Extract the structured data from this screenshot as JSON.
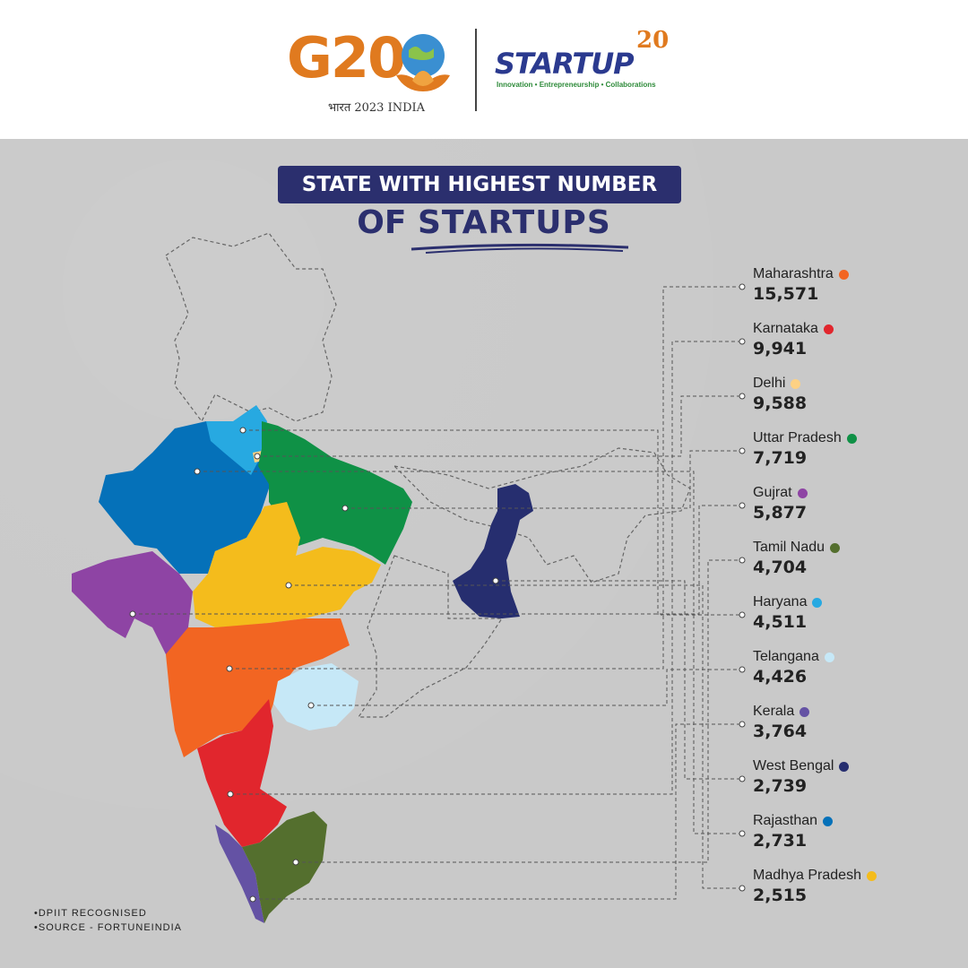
{
  "header": {
    "g20_text": "G20",
    "g20_sub": "भारत 2023 INDIA",
    "startup_text": "STARTUP",
    "startup_20": "20",
    "startup_tagline": "Innovation • Entrepreneurship • Collaborations"
  },
  "title": {
    "line1": "STATE WITH HIGHEST NUMBER",
    "line2_prefix": "OF",
    "line2_emphasis": "STARTUPS"
  },
  "states": [
    {
      "name": "Maharashtra",
      "value": "15,571",
      "color": "#f26522"
    },
    {
      "name": "Karnataka",
      "value": "9,941",
      "color": "#e1262d"
    },
    {
      "name": "Delhi",
      "value": "9,588",
      "color": "#fdd184"
    },
    {
      "name": "Uttar Pradesh",
      "value": "7,719",
      "color": "#0f9146"
    },
    {
      "name": "Gujrat",
      "value": "5,877",
      "color": "#8e44a4"
    },
    {
      "name": "Tamil Nadu",
      "value": "4,704",
      "color": "#546f2e"
    },
    {
      "name": "Haryana",
      "value": "4,511",
      "color": "#27a9e1"
    },
    {
      "name": "Telangana",
      "value": "4,426",
      "color": "#c6e8f7"
    },
    {
      "name": "Kerala",
      "value": "3,764",
      "color": "#6452a4"
    },
    {
      "name": "West Bengal",
      "value": "2,739",
      "color": "#262e6f"
    },
    {
      "name": "Rajasthan",
      "value": "2,731",
      "color": "#0571b9"
    },
    {
      "name": "Madhya Pradesh",
      "value": "2,515",
      "color": "#f4bc1c"
    }
  ],
  "footnotes": [
    "•DPIIT RECOGNISED",
    "•SOURCE - FORTUNEINDIA"
  ]
}
